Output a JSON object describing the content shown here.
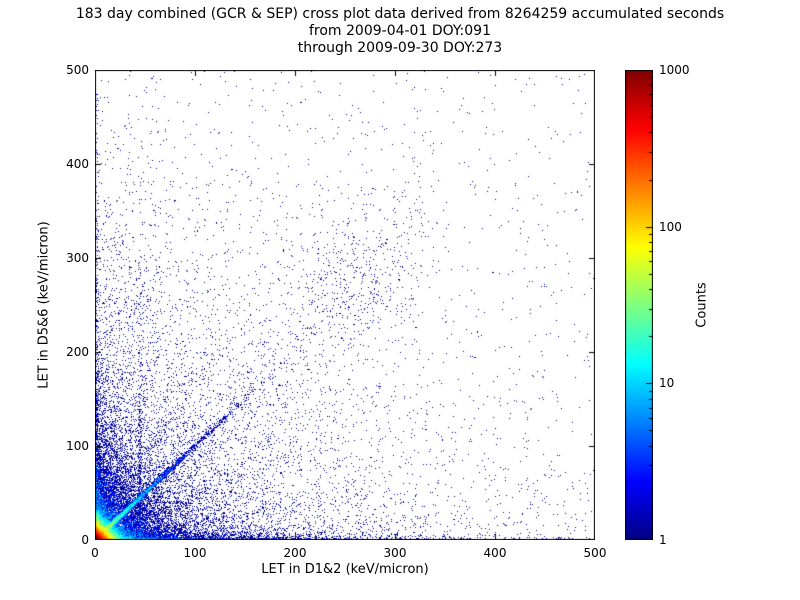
{
  "chart_data": {
    "type": "scatter",
    "title": "183 day combined (GCR & SEP) cross plot data derived from 8264259 accumulated seconds\nfrom 2009-04-01 DOY:091\nthrough 2009-09-30 DOY:273",
    "title_lines": [
      "183 day combined (GCR & SEP) cross plot data derived from 8264259 accumulated seconds",
      "from 2009-04-01 DOY:091",
      "through 2009-09-30 DOY:273"
    ],
    "xlabel": "LET in D1&2 (keV/micron)",
    "ylabel": "LET in D5&6 (keV/micron)",
    "xlim": [
      0,
      500
    ],
    "ylim": [
      0,
      500
    ],
    "xticks": [
      0,
      100,
      200,
      300,
      400,
      500
    ],
    "yticks": [
      0,
      100,
      200,
      300,
      400,
      500
    ],
    "grid": false,
    "colorbar": {
      "label": "Counts",
      "scale": "log",
      "min": 1,
      "max": 1000,
      "ticks": [
        1000,
        100,
        10,
        1
      ],
      "colormap": "jet"
    },
    "seed": 20090401,
    "density_model": {
      "description": "2D histogram of coincidence LET events: very hot core (counts >1000, red) at origin below ~15 keV/micron; cyan-green diagonal y=x proton/ion correlation line fading by ~100; several ray-like streaks fanning from the origin above and below the diagonal; dense blue cloud below ~100 on both axes; sparse single-count (dark blue) events scattered across the full 0-500 range with a loose cluster near (250,290); single-count rows hugging both axes out to 500.",
      "components": [
        {
          "kind": "blob",
          "n": 52000,
          "xscale": 5.5,
          "yscale": 5.5
        },
        {
          "kind": "blob",
          "n": 9000,
          "xscale": 28,
          "yscale": 28
        },
        {
          "kind": "diag_line",
          "n": 6000,
          "rscale": 30,
          "sigma": 1.3
        },
        {
          "kind": "ray",
          "n": 700,
          "angle_deg": 87,
          "rscale": 95,
          "sigma": 1.2
        },
        {
          "kind": "ray",
          "n": 500,
          "angle_deg": 81,
          "rscale": 75,
          "sigma": 1.2
        },
        {
          "kind": "ray",
          "n": 400,
          "angle_deg": 73,
          "rscale": 65,
          "sigma": 1.2
        },
        {
          "kind": "ray",
          "n": 350,
          "angle_deg": 60,
          "rscale": 75,
          "sigma": 1.5
        },
        {
          "kind": "ray",
          "n": 500,
          "angle_deg": 3,
          "rscale": 110,
          "sigma": 1.2
        },
        {
          "kind": "ray",
          "n": 350,
          "angle_deg": 10,
          "rscale": 80,
          "sigma": 1.2
        },
        {
          "kind": "ray",
          "n": 300,
          "angle_deg": 25,
          "rscale": 70,
          "sigma": 1.5
        },
        {
          "kind": "hstreak",
          "n": 2200,
          "xscale": 115,
          "yscale": 2.2
        },
        {
          "kind": "vstreak",
          "n": 650,
          "x": 2,
          "yscale": 115,
          "sigma": 1.0
        },
        {
          "kind": "vstreak",
          "n": 300,
          "x": 45,
          "yscale": 90,
          "sigma": 1.1
        },
        {
          "kind": "diag_band",
          "n": 650,
          "xmax_b": 330,
          "spread": 0.16,
          "noise": 10
        },
        {
          "kind": "cluster",
          "n": 320,
          "cx": 255,
          "cy": 290,
          "sx": 38,
          "sy": 40
        },
        {
          "kind": "bg_exp",
          "n": 6500,
          "xscale": 115,
          "yscale": 115
        },
        {
          "kind": "uniform",
          "n": 900
        }
      ]
    }
  }
}
